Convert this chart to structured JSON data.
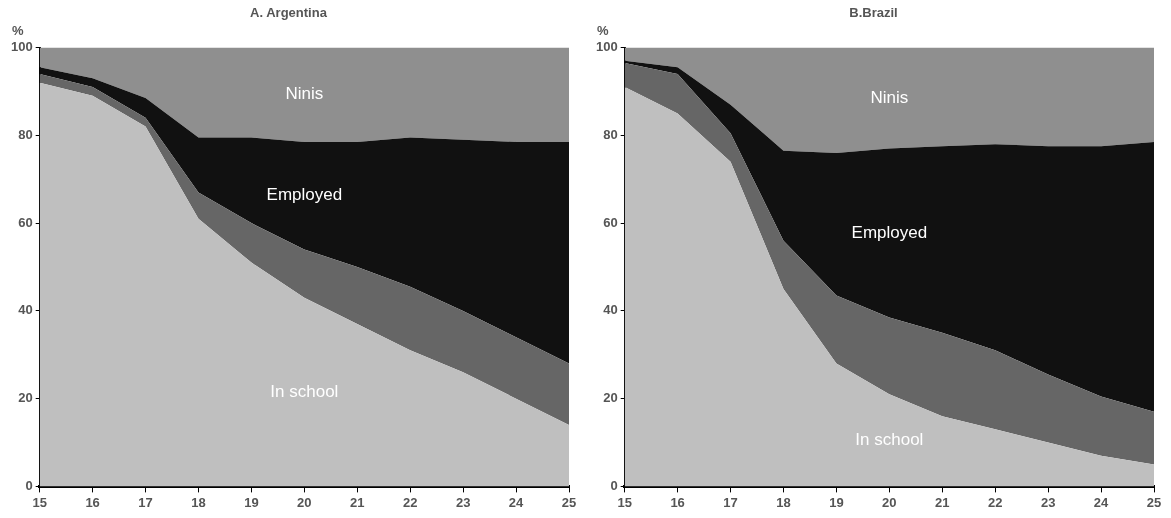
{
  "chart_data": [
    {
      "type": "area",
      "title": "A. Argentina",
      "ylabel": "%",
      "stacked": true,
      "x": [
        15,
        16,
        17,
        18,
        19,
        20,
        21,
        22,
        23,
        24,
        25
      ],
      "xlim": [
        15,
        25
      ],
      "xticks": [
        15,
        16,
        17,
        18,
        19,
        20,
        21,
        22,
        23,
        24,
        25
      ],
      "ylim": [
        0,
        100
      ],
      "yticks": [
        0,
        20,
        40,
        60,
        80,
        100
      ],
      "grid": false,
      "legend": false,
      "series": [
        {
          "name": "In school",
          "color": "#bfbfbf",
          "values": [
            92,
            89,
            82,
            61,
            51,
            43,
            37,
            31,
            26,
            20,
            14
          ]
        },
        {
          "color": "#666666",
          "values": [
            2,
            2,
            2,
            6,
            9,
            11,
            13,
            14.5,
            14,
            14,
            14
          ]
        },
        {
          "name": "Employed",
          "color": "#111111",
          "values": [
            1.5,
            2,
            4.5,
            12.5,
            19.5,
            24.5,
            28.5,
            34,
            39,
            44.5,
            50.5
          ]
        },
        {
          "name": "Ninis",
          "color": "#8f8f8f",
          "values": [
            4.5,
            7,
            11.5,
            20.5,
            20.5,
            21.5,
            21.5,
            20.5,
            21,
            21.5,
            21.5
          ]
        }
      ]
    },
    {
      "type": "area",
      "title": "B.Brazil",
      "ylabel": "%",
      "stacked": true,
      "x": [
        15,
        16,
        17,
        18,
        19,
        20,
        21,
        22,
        23,
        24,
        25
      ],
      "xlim": [
        15,
        25
      ],
      "xticks": [
        15,
        16,
        17,
        18,
        19,
        20,
        21,
        22,
        23,
        24,
        25
      ],
      "ylim": [
        0,
        100
      ],
      "yticks": [
        0,
        20,
        40,
        60,
        80,
        100
      ],
      "grid": false,
      "legend": false,
      "series": [
        {
          "name": "In school",
          "color": "#bfbfbf",
          "values": [
            91,
            85,
            74,
            45,
            28,
            21,
            16,
            13,
            10,
            7,
            5
          ]
        },
        {
          "color": "#666666",
          "values": [
            5.5,
            9,
            6.5,
            11,
            15.5,
            17.5,
            19,
            18,
            15.5,
            13.5,
            12
          ]
        },
        {
          "name": "Employed",
          "color": "#111111",
          "values": [
            0.5,
            1.5,
            6.5,
            20.5,
            32.5,
            38.5,
            42.5,
            47,
            52,
            57,
            61.5
          ]
        },
        {
          "name": "Ninis",
          "color": "#8f8f8f",
          "values": [
            3,
            4.5,
            13,
            23.5,
            24,
            23,
            22.5,
            22,
            22.5,
            22.5,
            21.5
          ]
        }
      ]
    }
  ]
}
